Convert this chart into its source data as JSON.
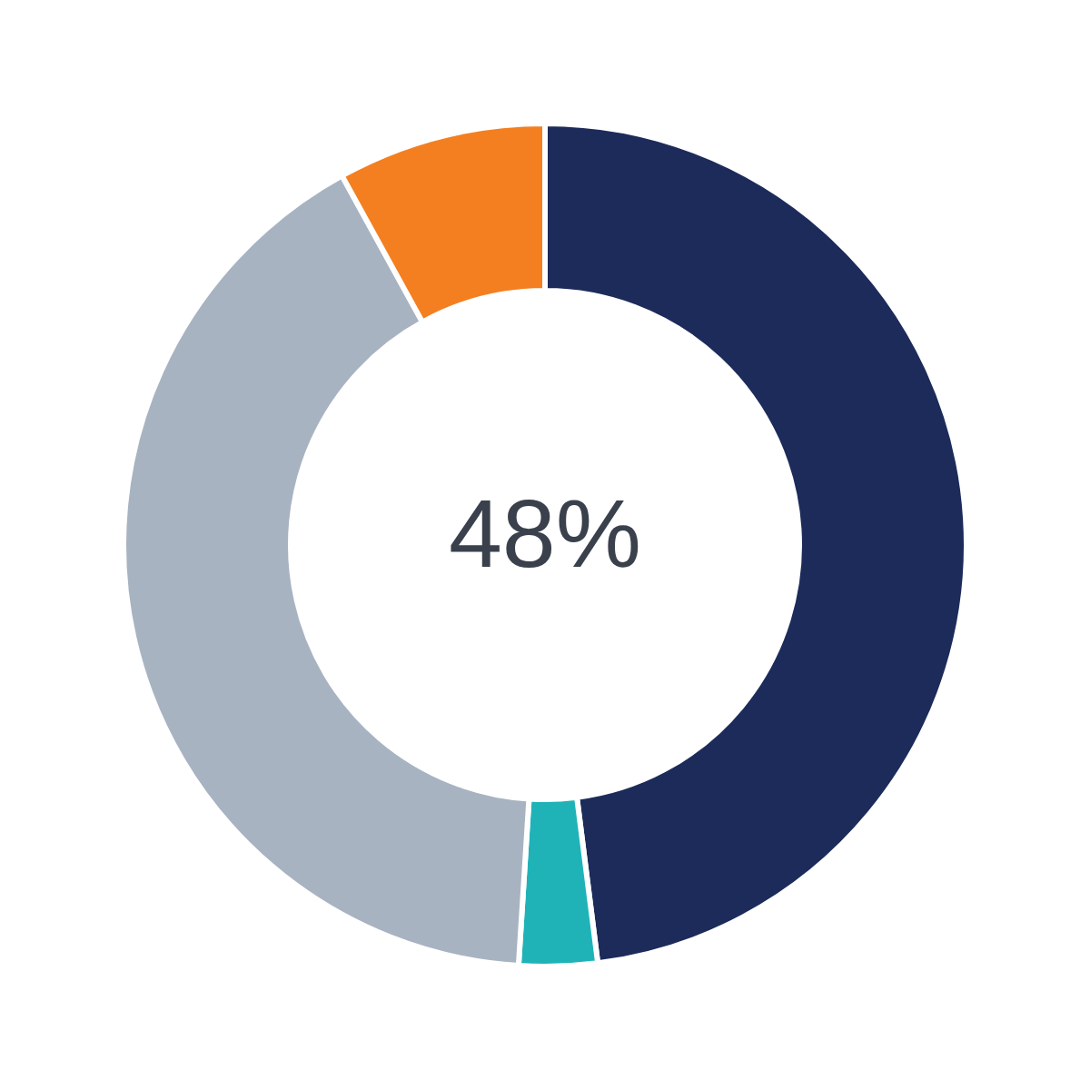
{
  "chart_data": {
    "type": "donut",
    "categories": [
      null,
      null,
      null,
      null
    ],
    "values": [
      48,
      3,
      41,
      8
    ],
    "colors": [
      "#1c2b5a",
      "#1fb3b8",
      "#a8b3c2",
      "#f47f20"
    ],
    "annotations": [
      "48%"
    ]
  }
}
